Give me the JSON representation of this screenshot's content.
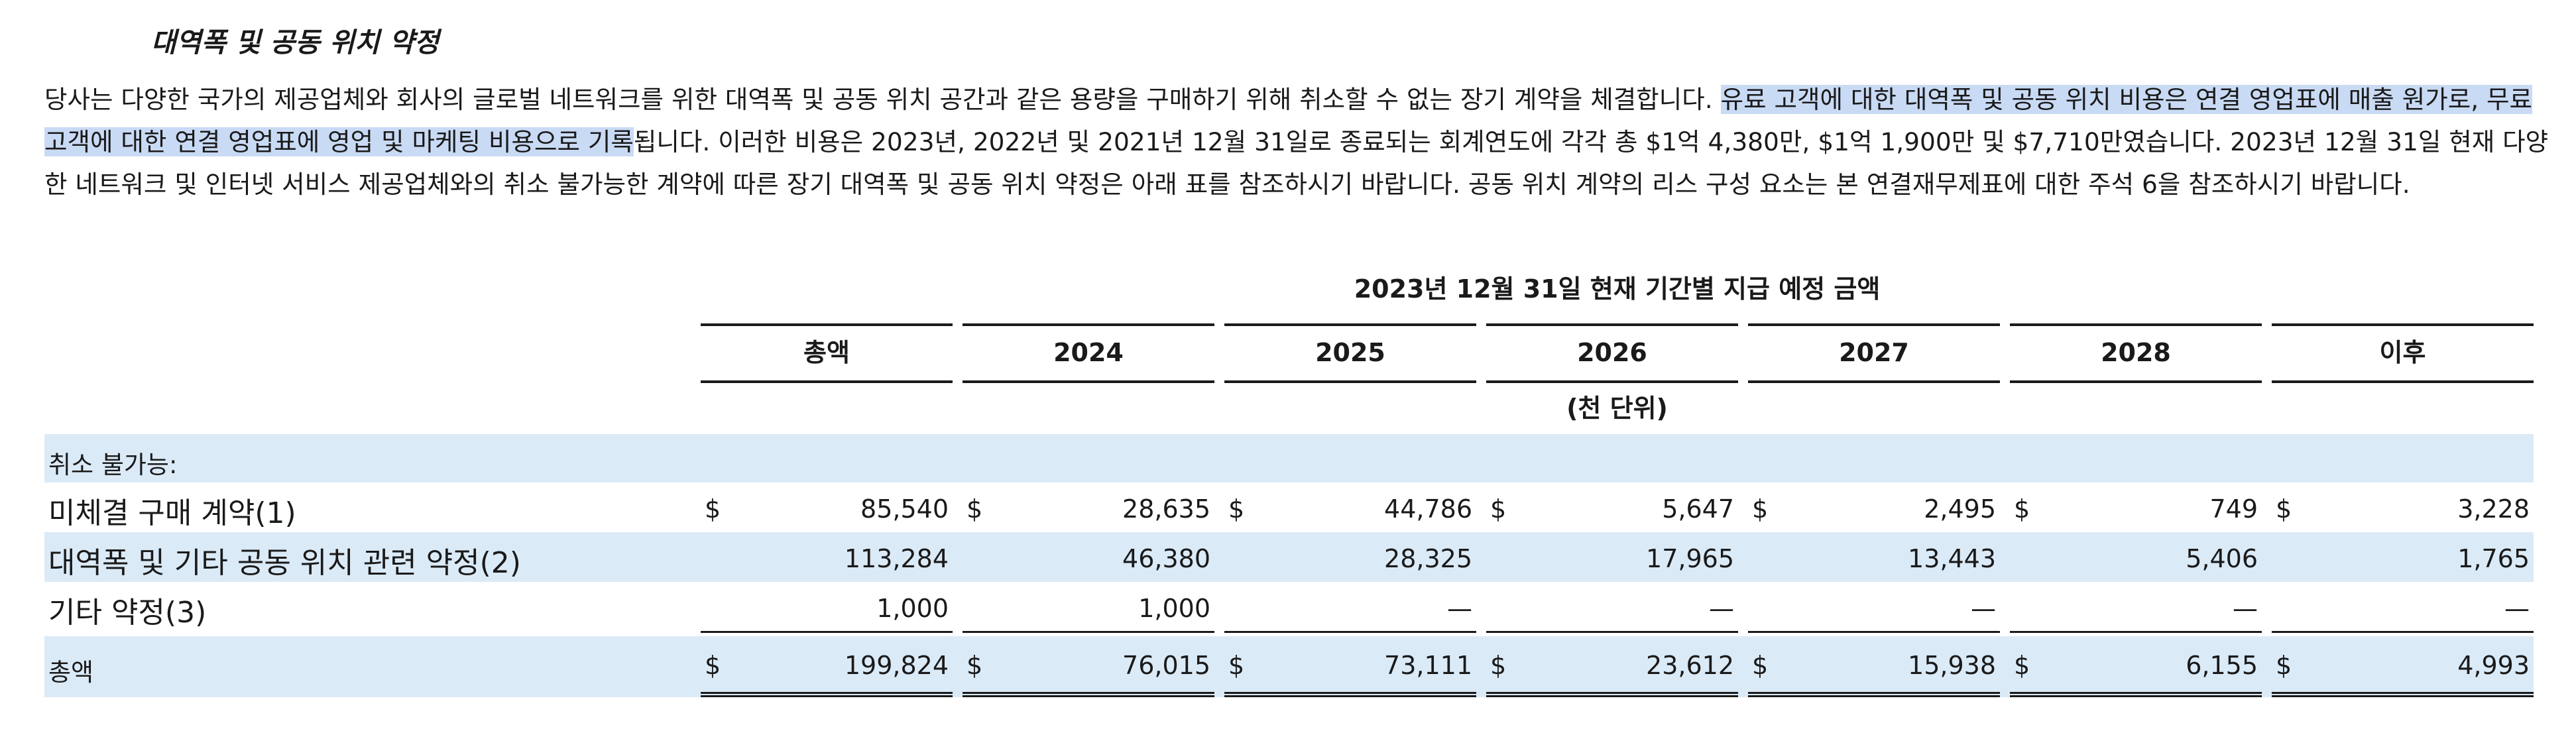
{
  "section": {
    "title": "대역폭 및 공동 위치 약정"
  },
  "paragraph": {
    "part1": "당사는 다양한 국가의 제공업체와 회사의 글로벌 네트워크를 위한 대역폭 및 공동 위치 공간과 같은 용량을 구매하기 위해 취소할 수 없는 장기 계약을 체결합니다. ",
    "highlighted": "유료 고객에 대한 대역폭 및 공동 위치 비용은 연결 영업표에 매출 원가로, 무료 고객에 대한 연결 영업표에 영업 및 마케팅 비용으로 기록",
    "part2": "됩니다. 이러한 비용은 2023년, 2022년 및 2021년 12월 31일로 종료되는 회계연도에 각각 총 $1억 4,380만, $1억 1,900만 및 $7,710만였습니다. 2023년 12월 31일 현재 다양한 네트워크 및 인터넷 서비스 제공업체와의 취소 불가능한 계약에 따른 장기 대역폭 및 공동 위치 약정은 아래 표를 참조하시기 바랍니다. 공동 위치 계약의 리스 구성 요소는 본 연결재무제표에 대한 주석 6을 참조하시기 바랍니다."
  },
  "table": {
    "period_heading": "2023년 12월 31일 현재 기간별 지급 예정 금액",
    "unit_note": "(천 단위)",
    "columns": [
      "총액",
      "2024",
      "2025",
      "2026",
      "2027",
      "2028",
      "이후"
    ],
    "currency_symbol": "$",
    "section_label": "취소 불가능:",
    "rows": [
      {
        "label": "미체결 구매 계약(1)",
        "values": [
          "85,540",
          "28,635",
          "44,786",
          "5,647",
          "2,495",
          "749",
          "3,228"
        ]
      },
      {
        "label": "대역폭 및 기타 공동 위치 관련 약정(2)",
        "values": [
          "113,284",
          "46,380",
          "28,325",
          "17,965",
          "13,443",
          "5,406",
          "1,765"
        ]
      },
      {
        "label": "기타 약정(3)",
        "values": [
          "1,000",
          "1,000",
          "—",
          "—",
          "—",
          "—",
          "—"
        ]
      }
    ],
    "total": {
      "label": "총액",
      "values": [
        "199,824",
        "76,015",
        "73,111",
        "23,612",
        "15,938",
        "6,155",
        "4,993"
      ]
    }
  },
  "colors": {
    "highlight": "#c9daf4",
    "row_shade": "#dbeaf7",
    "text": "#1a1a1a"
  }
}
